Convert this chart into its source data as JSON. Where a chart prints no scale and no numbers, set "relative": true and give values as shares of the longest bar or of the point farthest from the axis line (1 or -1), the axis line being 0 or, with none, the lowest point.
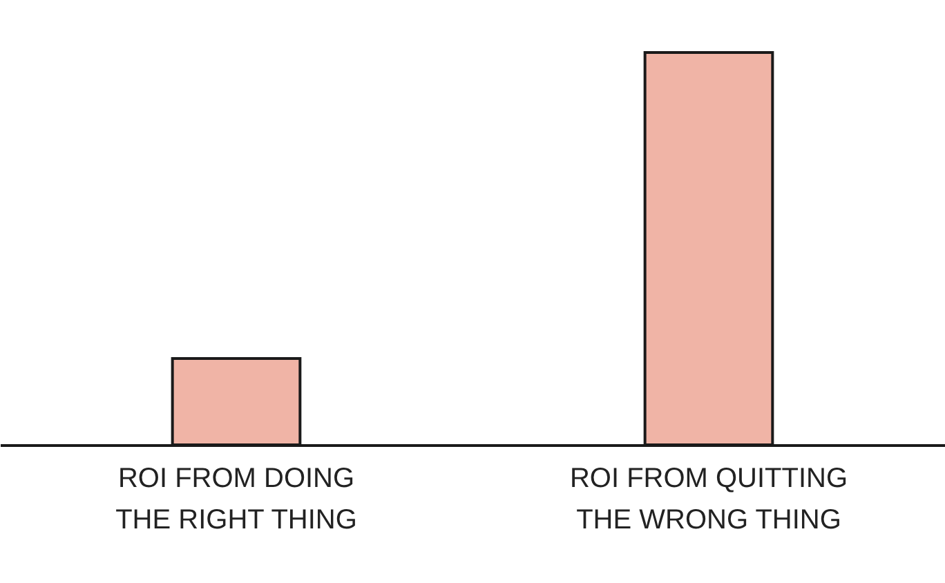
{
  "chart_data": {
    "type": "bar",
    "relative": true,
    "categories": [
      "ROI FROM DOING THE RIGHT THING",
      "ROI FROM QUITTING THE WRONG THING"
    ],
    "values": [
      0.22,
      1
    ],
    "color": "#f0b4a6"
  }
}
